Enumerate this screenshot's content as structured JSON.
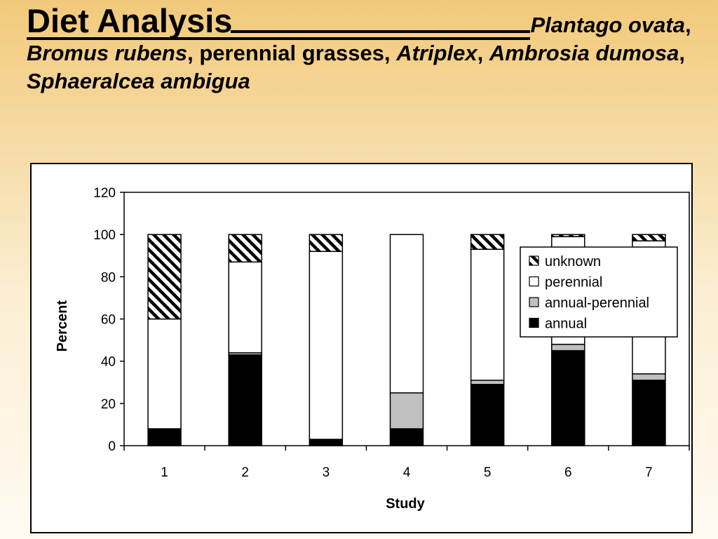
{
  "slide": {
    "title_head": "Diet Analysis",
    "title_rest": [
      {
        "text": "Plantago ovata",
        "italic": true
      },
      {
        "text": ", ",
        "italic": false
      },
      {
        "text": "Bromus rubens",
        "italic": true
      },
      {
        "text": ", perennial grasses, ",
        "italic": false
      },
      {
        "text": "Atriplex",
        "italic": true
      },
      {
        "text": ", ",
        "italic": false
      },
      {
        "text": "Ambrosia dumosa",
        "italic": true
      },
      {
        "text": ", ",
        "italic": false
      },
      {
        "text": "Sphaeralcea ambigua",
        "italic": true
      }
    ]
  },
  "colors": {
    "annual": "#000000",
    "annual_perennial": "#c0c0c0",
    "perennial": "#ffffff",
    "unknown": "hatched"
  },
  "chart_data": {
    "type": "bar",
    "stacked": true,
    "categories": [
      "1",
      "2",
      "3",
      "4",
      "5",
      "6",
      "7"
    ],
    "xlabel": "Study",
    "ylabel": "Percent",
    "ylim": [
      0,
      120
    ],
    "yticks": [
      0,
      20,
      40,
      60,
      80,
      100,
      120
    ],
    "legend_position": "right",
    "series": [
      {
        "name": "annual",
        "key": "annual",
        "values": [
          8,
          43,
          3,
          8,
          29,
          45,
          31
        ]
      },
      {
        "name": "annual-perennial",
        "key": "annual_perennial",
        "values": [
          0,
          1,
          0,
          17,
          2,
          3,
          3
        ]
      },
      {
        "name": "perennial",
        "key": "perennial",
        "values": [
          52,
          43,
          89,
          75,
          62,
          51,
          63
        ]
      },
      {
        "name": "unknown",
        "key": "unknown",
        "values": [
          40,
          13,
          8,
          0,
          7,
          1,
          3
        ]
      }
    ],
    "legend_order": [
      "unknown",
      "perennial",
      "annual-perennial",
      "annual"
    ]
  }
}
